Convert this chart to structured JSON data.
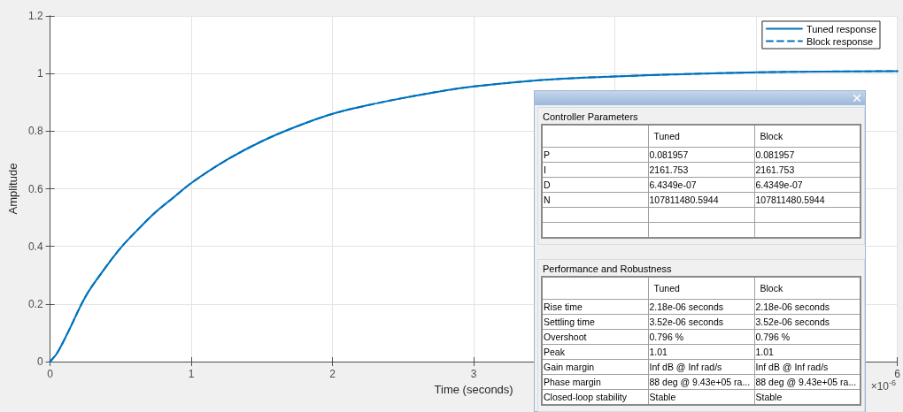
{
  "chart_data": [
    {
      "type": "line",
      "xlabel": "Time (seconds)",
      "ylabel": "Amplitude",
      "x": [
        0,
        0.05,
        0.125,
        0.25,
        0.375,
        0.5,
        0.625,
        0.75,
        0.875,
        1,
        1.25,
        1.5,
        1.75,
        2,
        2.25,
        2.5,
        2.75,
        3,
        3.5,
        4,
        4.5,
        5,
        5.5,
        6
      ],
      "series": [
        {
          "name": "Tuned response",
          "color": "#0072bd",
          "line_style": "solid",
          "values": [
            0,
            0.03,
            0.1,
            0.225,
            0.315,
            0.395,
            0.46,
            0.52,
            0.57,
            0.62,
            0.7,
            0.765,
            0.817,
            0.86,
            0.89,
            0.915,
            0.937,
            0.955,
            0.978,
            0.99,
            0.998,
            1.004,
            1.007,
            1.008
          ]
        },
        {
          "name": "Block response",
          "color": "#0072bd",
          "line_style": "dashed",
          "values": [
            0,
            0.03,
            0.1,
            0.225,
            0.315,
            0.395,
            0.46,
            0.52,
            0.57,
            0.62,
            0.7,
            0.765,
            0.817,
            0.86,
            0.89,
            0.915,
            0.937,
            0.955,
            0.978,
            0.99,
            0.998,
            1.004,
            1.007,
            1.008
          ]
        }
      ],
      "xlim": [
        0,
        6
      ],
      "xticks": [
        0,
        1,
        2,
        3,
        {
          "value": 4,
          "label": null
        },
        {
          "value": 5,
          "label": null
        },
        6
      ],
      "ylim": [
        0,
        1.2
      ],
      "yticks": [
        0,
        0.2,
        0.4,
        0.6,
        0.8,
        1,
        1.2
      ],
      "grid": true,
      "legend": "top right",
      "annotations": [
        "×10$^{-6}$"
      ]
    },
    {
      "type": "other",
      "title": "Controller Parameters",
      "categories": [
        "Tuned",
        "Block"
      ],
      "y_categories": [
        "P",
        "I",
        "D",
        "N",
        null,
        null
      ],
      "cell_labels": [
        [
          "0.081957",
          "0.081957"
        ],
        [
          "2161.753",
          "2161.753"
        ],
        [
          "6.4349e-07",
          "6.4349e-07"
        ],
        [
          "107811480.5944",
          "107811480.5944"
        ],
        [
          null,
          null
        ],
        [
          null,
          null
        ]
      ]
    },
    {
      "type": "other",
      "title": "Performance and Robustness",
      "categories": [
        "Tuned",
        "Block"
      ],
      "y_categories": [
        "Rise time",
        "Settling time",
        "Overshoot",
        "Peak",
        "Gain margin",
        "Phase margin",
        "Closed-loop stability"
      ],
      "cell_labels": [
        [
          "2.18e-06 seconds",
          "2.18e-06 seconds"
        ],
        [
          "3.52e-06 seconds",
          "3.52e-06 seconds"
        ],
        [
          "0.796 %",
          "0.796 %"
        ],
        [
          "1.01",
          "1.01"
        ],
        [
          "Inf dB @ Inf rad/s",
          "Inf dB @ Inf rad/s"
        ],
        [
          "88 deg @ 9.43e+05 ra...",
          "88 deg @ 9.43e+05 ra..."
        ],
        [
          "Stable",
          "Stable"
        ]
      ]
    }
  ]
}
